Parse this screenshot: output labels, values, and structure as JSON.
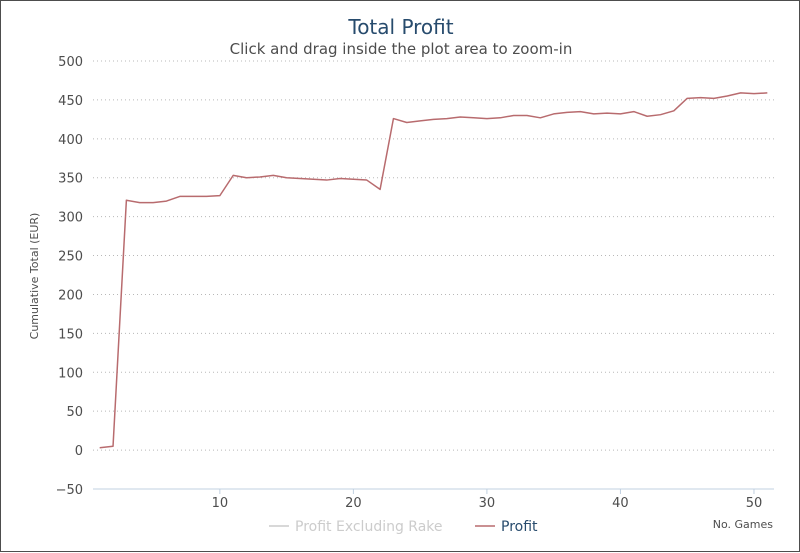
{
  "chart_data": {
    "type": "line",
    "title": "Total Profit",
    "subtitle": "Click and drag inside the plot area to zoom-in",
    "xlabel": "No. Games",
    "ylabel": "Cumulative Total (EUR)",
    "xlim": [
      0.5,
      51.5
    ],
    "ylim": [
      -50,
      500
    ],
    "x_ticks": [
      10,
      20,
      30,
      40,
      50
    ],
    "y_ticks": [
      -50,
      0,
      50,
      100,
      150,
      200,
      250,
      300,
      350,
      400,
      450,
      500
    ],
    "grid": "horizontal dotted",
    "legend_position": "bottom-center",
    "series": [
      {
        "name": "Profit Excluding Rake",
        "color": "#cccccc",
        "visible": false,
        "values": []
      },
      {
        "name": "Profit",
        "color": "#b86b6e",
        "visible": true,
        "x": [
          1,
          2,
          3,
          4,
          5,
          6,
          7,
          8,
          9,
          10,
          11,
          12,
          13,
          14,
          15,
          16,
          17,
          18,
          19,
          20,
          21,
          22,
          23,
          24,
          25,
          26,
          27,
          28,
          29,
          30,
          31,
          32,
          33,
          34,
          35,
          36,
          37,
          38,
          39,
          40,
          41,
          42,
          43,
          44,
          45,
          46,
          47,
          48,
          49,
          50,
          51
        ],
        "values": [
          3,
          5,
          321,
          318,
          318,
          320,
          326,
          326,
          326,
          327,
          353,
          350,
          351,
          353,
          350,
          349,
          348,
          347,
          349,
          348,
          347,
          335,
          426,
          421,
          423,
          425,
          426,
          428,
          427,
          426,
          427,
          430,
          430,
          427,
          432,
          434,
          435,
          432,
          433,
          432,
          435,
          429,
          431,
          436,
          452,
          453,
          452,
          455,
          459,
          458,
          459
        ]
      }
    ]
  }
}
